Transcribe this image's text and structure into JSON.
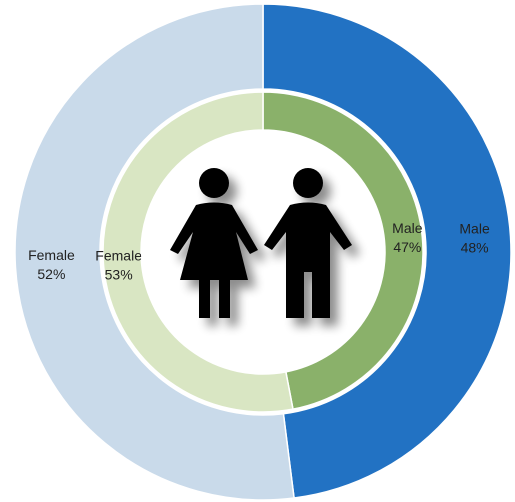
{
  "chart_data": {
    "type": "donut",
    "rings": [
      {
        "categories": [
          "Male",
          "Female"
        ],
        "values": [
          48,
          52
        ],
        "value_labels": [
          "48%",
          "52%"
        ],
        "colors": [
          "#2272c3",
          "#c9daea"
        ]
      },
      {
        "categories": [
          "Male",
          "Female"
        ],
        "values": [
          47,
          53
        ],
        "value_labels": [
          "47%",
          "53%"
        ],
        "colors": [
          "#8ab16a",
          "#d9e6c3"
        ]
      }
    ]
  }
}
